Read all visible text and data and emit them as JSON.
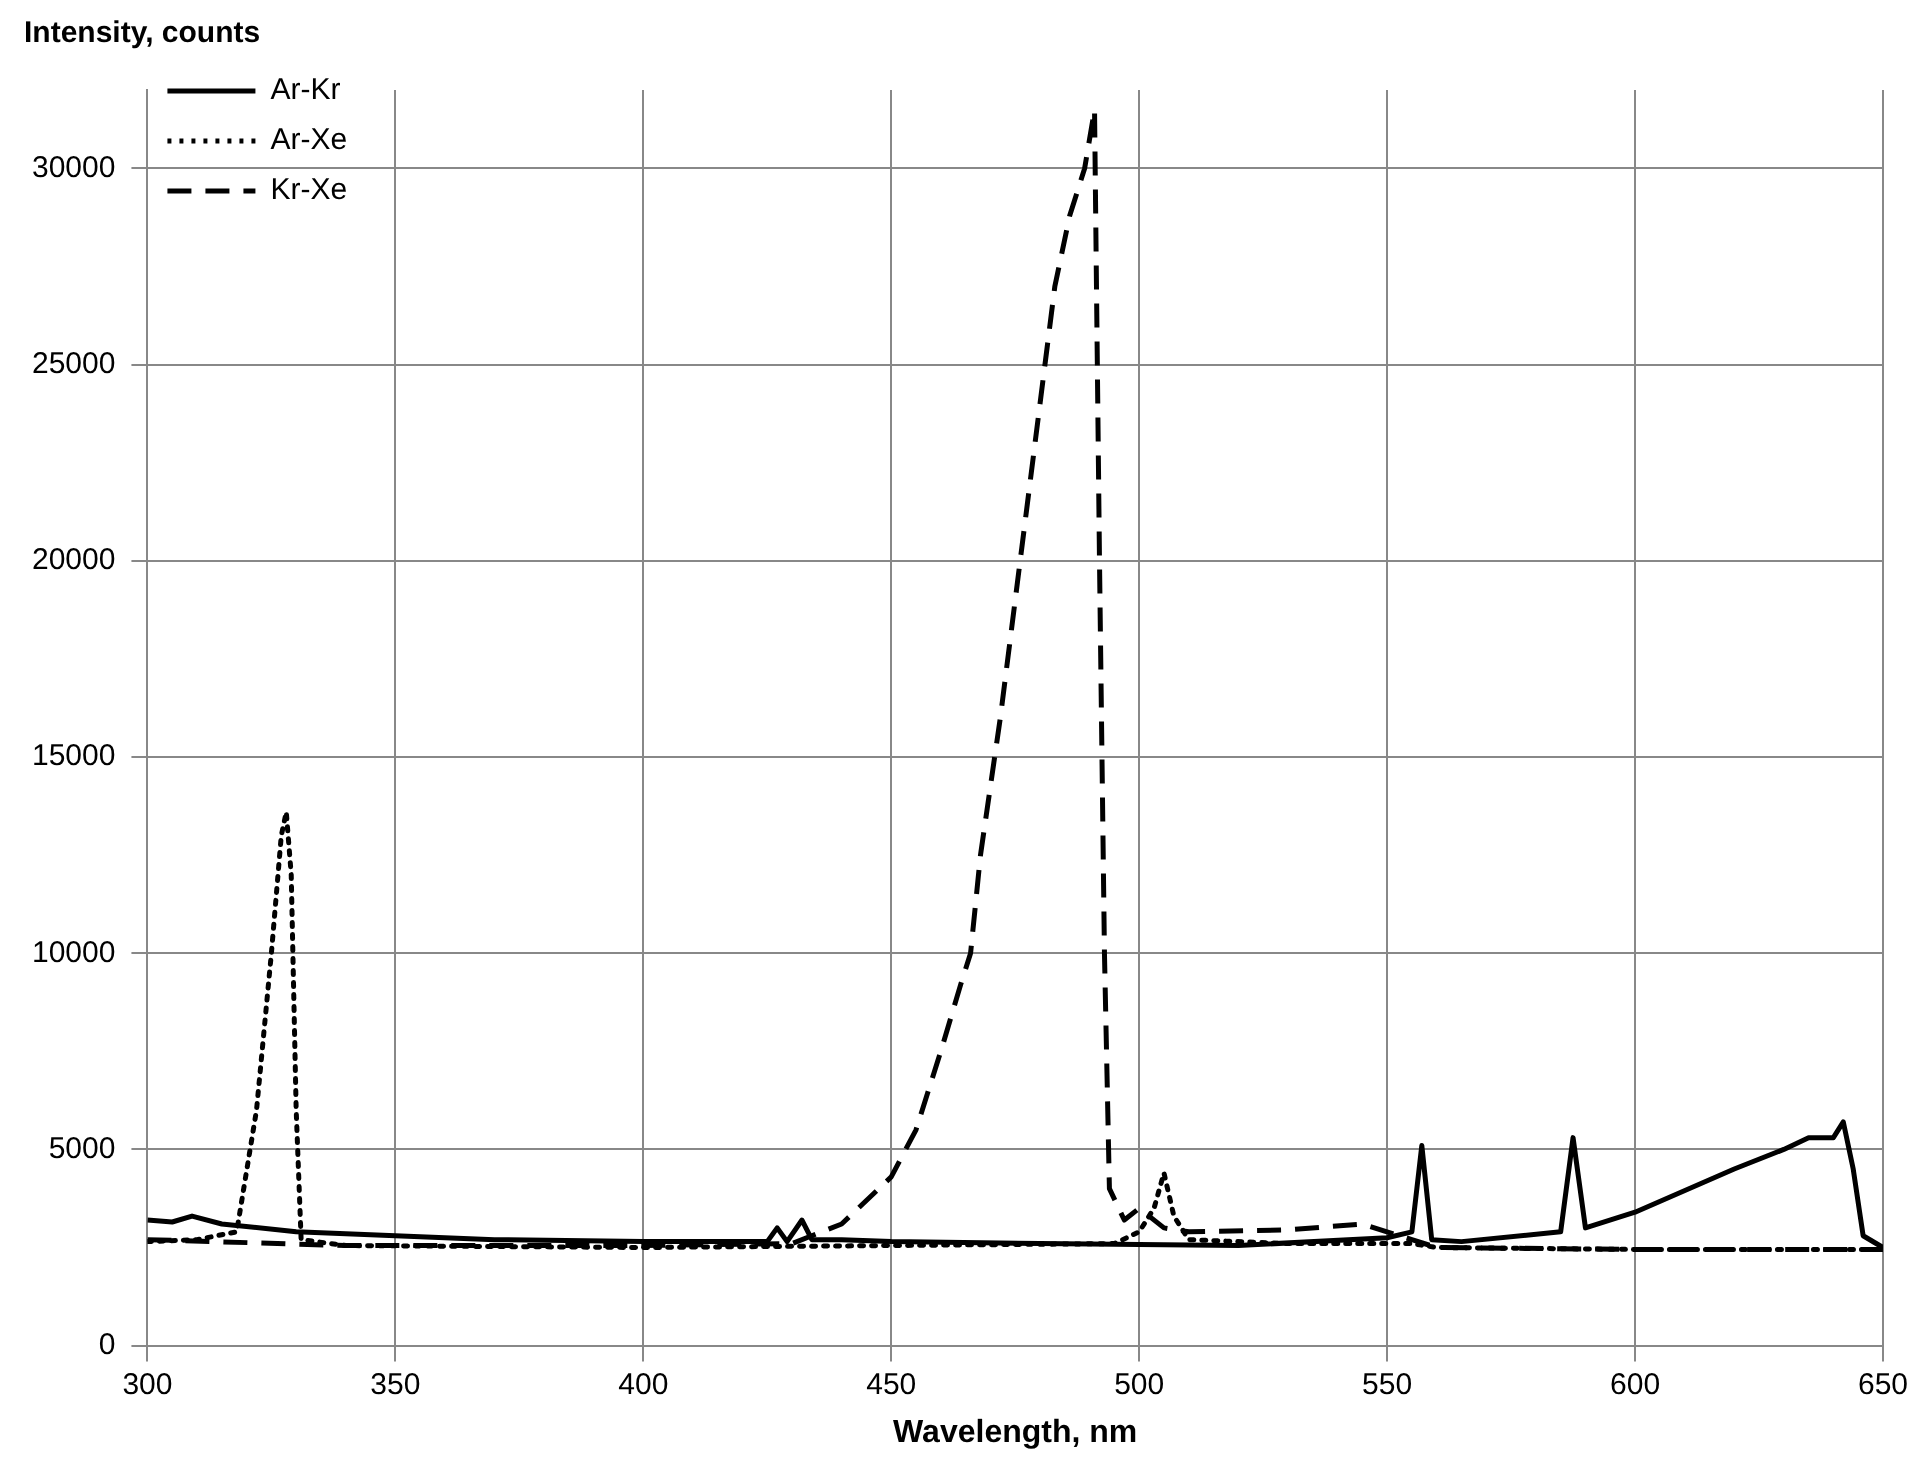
{
  "chart_data": {
    "type": "line",
    "xlabel": "Wavelength, nm",
    "ylabel": "Intensity, counts",
    "xlim": [
      300,
      650
    ],
    "xticks": [
      300,
      350,
      400,
      450,
      500,
      550,
      600,
      650
    ],
    "ylim": [
      0,
      32000
    ],
    "yticks": [
      0,
      5000,
      10000,
      15000,
      20000,
      25000,
      30000
    ],
    "grid": true,
    "legend": "top left",
    "marker": "none",
    "series": [
      {
        "name": "Ar-Kr",
        "color": "#000000",
        "line_style": "solid",
        "x": [
          300,
          305,
          309,
          315,
          330,
          350,
          370,
          400,
          425,
          427,
          429,
          432,
          434,
          440,
          450,
          480,
          520,
          550,
          555,
          557,
          559,
          565,
          585,
          587.5,
          590,
          600,
          620,
          630,
          635,
          640,
          642,
          644,
          646,
          650
        ],
        "values": [
          3200,
          3150,
          3300,
          3100,
          2900,
          2800,
          2700,
          2650,
          2650,
          3000,
          2650,
          3200,
          2700,
          2700,
          2650,
          2600,
          2550,
          2750,
          2900,
          5100,
          2700,
          2650,
          2900,
          5300,
          3000,
          3400,
          4500,
          5000,
          5300,
          5300,
          5700,
          4500,
          2800,
          2500
        ]
      },
      {
        "name": "Ar-Xe",
        "color": "#000000",
        "line_style": "dotted",
        "x": [
          300,
          310,
          318,
          322,
          325,
          327,
          328,
          329,
          330,
          331,
          340,
          400,
          450,
          495,
          500,
          503,
          505,
          507,
          510,
          530,
          555,
          560,
          600,
          650
        ],
        "values": [
          2650,
          2700,
          2900,
          6000,
          10000,
          13000,
          13600,
          12000,
          6000,
          2700,
          2550,
          2500,
          2550,
          2600,
          2900,
          3500,
          4400,
          3300,
          2700,
          2600,
          2600,
          2500,
          2450,
          2450
        ]
      },
      {
        "name": "Kr-Xe",
        "color": "#000000",
        "line_style": "dashed",
        "x": [
          300,
          340,
          400,
          430,
          440,
          450,
          455,
          460,
          464,
          466,
          468,
          472,
          478,
          483,
          486,
          489,
          491,
          492,
          493,
          494,
          497,
          500,
          505,
          510,
          530,
          545,
          555,
          560,
          600,
          650
        ],
        "values": [
          2700,
          2550,
          2550,
          2600,
          3100,
          4300,
          5500,
          7500,
          9200,
          10000,
          12500,
          16000,
          22000,
          27000,
          28800,
          30000,
          31500,
          20000,
          10000,
          4000,
          3200,
          3500,
          3000,
          2900,
          2950,
          3100,
          2700,
          2500,
          2450,
          2450
        ]
      }
    ]
  }
}
